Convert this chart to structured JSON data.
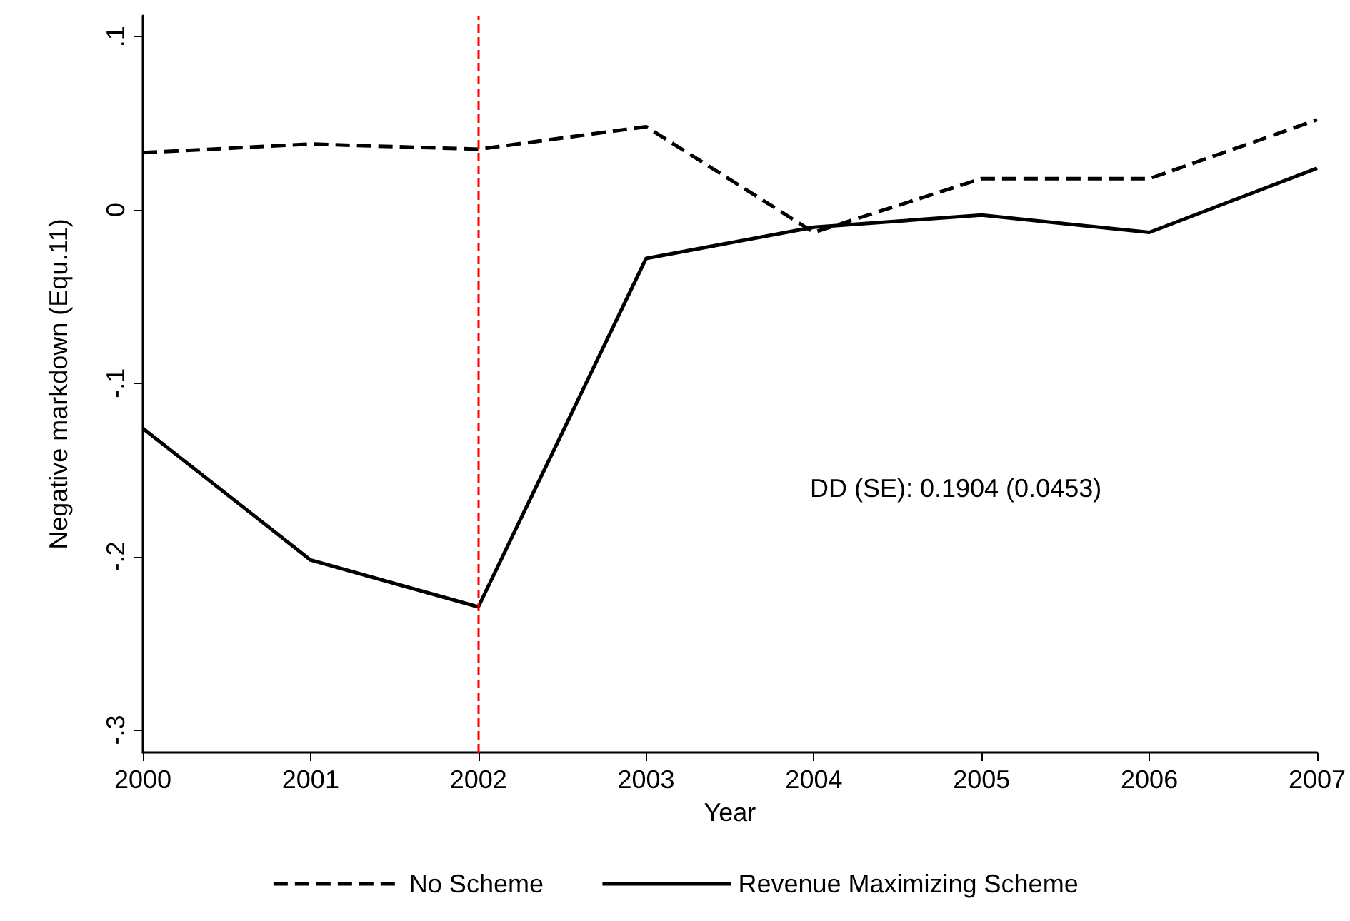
{
  "chart_data": {
    "type": "line",
    "xlabel": "Year",
    "ylabel": "Negative markdown (Equ.11)",
    "x": [
      2000,
      2001,
      2002,
      2003,
      2004,
      2005,
      2006,
      2007
    ],
    "series": [
      {
        "name": "No Scheme",
        "color": "#000000",
        "line_style": "dashed",
        "values": [
          0.033,
          0.038,
          0.035,
          0.048,
          -0.013,
          0.018,
          0.018,
          0.052
        ]
      },
      {
        "name": "Revenue Maximizing Scheme",
        "color": "#000000",
        "line_style": "solid",
        "values": [
          -0.126,
          -0.202,
          -0.229,
          -0.028,
          -0.01,
          -0.003,
          -0.013,
          0.024
        ]
      }
    ],
    "xlim": [
      2000,
      2007
    ],
    "xticks": [
      2000,
      2001,
      2002,
      2003,
      2004,
      2005,
      2006,
      2007
    ],
    "ylim": [
      -0.313,
      0.112
    ],
    "yticks": [
      {
        "value": -0.3,
        "label": "-.3"
      },
      {
        "value": -0.2,
        "label": "-.2"
      },
      {
        "value": -0.1,
        "label": "-.1"
      },
      {
        "value": 0,
        "label": "0"
      },
      {
        "value": 0.1,
        "label": ".1"
      }
    ],
    "ref_lines": [
      {
        "axis": "x",
        "value": 2002,
        "color": "#ff0000",
        "line_style": "dashed"
      }
    ],
    "annotations": [
      "DD (SE): 0.1904 (0.0453)"
    ],
    "grid": false,
    "legend": "bottom",
    "marker": "none"
  }
}
